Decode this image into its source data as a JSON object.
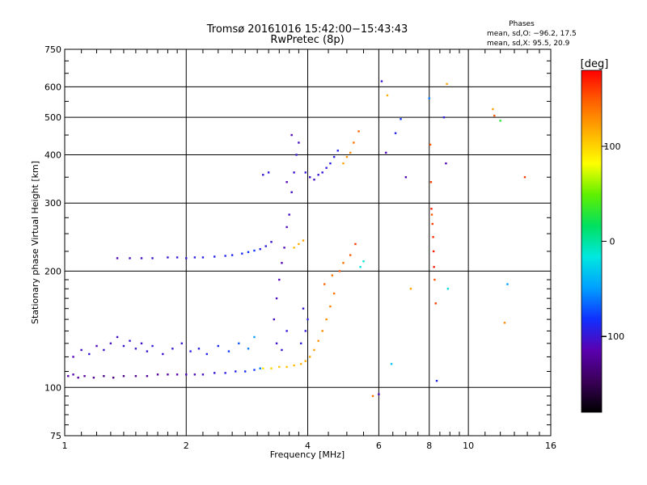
{
  "chart_data": {
    "type": "scatter",
    "title": "Tromsø 20161016 15:42:00−15:43:43",
    "subtitle": "RwPretec (8p)",
    "xlabel": "Frequency [MHz]",
    "ylabel": "Stationary phase Virtual Height [km]",
    "x_scale": "log",
    "y_scale": "log",
    "xlim": [
      1,
      16
    ],
    "ylim": [
      75,
      750
    ],
    "x_ticks": [
      "1",
      "2",
      "4",
      "6",
      "8",
      "10",
      "16"
    ],
    "y_ticks": [
      "75",
      "100",
      "200",
      "300",
      "400",
      "500",
      "600",
      "750"
    ],
    "grid": true,
    "stats": {
      "heading": "Phases",
      "line_o": "mean, sd,O: −96.2, 17.5",
      "line_x": "mean, sd,X:  95.5, 20.9"
    },
    "colorbar": {
      "label": "[deg]",
      "range": [
        -180,
        180
      ],
      "ticks": [
        "100",
        "0",
        "−100"
      ],
      "stops": [
        "#000000",
        "#3a0058",
        "#5a00b0",
        "#1030ff",
        "#00a0ff",
        "#00e8e0",
        "#00e060",
        "#60f000",
        "#ffff00",
        "#ffb000",
        "#ff6000",
        "#ff0000"
      ]
    },
    "series": [
      {
        "points": [
          [
            1.02,
            107,
            -115
          ],
          [
            1.05,
            108,
            -112
          ],
          [
            1.08,
            106,
            -118
          ],
          [
            1.12,
            107,
            -120
          ],
          [
            1.18,
            106,
            -125
          ],
          [
            1.25,
            107,
            -128
          ],
          [
            1.32,
            106,
            -130
          ],
          [
            1.4,
            107,
            -132
          ],
          [
            1.5,
            107,
            -128
          ],
          [
            1.6,
            107,
            -125
          ],
          [
            1.7,
            108,
            -122
          ],
          [
            1.8,
            108,
            -118
          ],
          [
            1.9,
            108,
            -115
          ],
          [
            2.0,
            108,
            -110
          ],
          [
            2.1,
            108,
            -108
          ],
          [
            2.2,
            108,
            -105
          ],
          [
            2.35,
            109,
            -100
          ],
          [
            2.5,
            109,
            -95
          ],
          [
            2.65,
            110,
            -90
          ],
          [
            2.8,
            110,
            -85
          ],
          [
            2.95,
            111,
            -78
          ],
          [
            3.05,
            112,
            -60
          ]
        ]
      },
      {
        "points": [
          [
            3.1,
            112,
            90
          ],
          [
            3.25,
            112,
            100
          ],
          [
            3.4,
            113,
            105
          ],
          [
            3.55,
            113,
            108
          ],
          [
            3.7,
            114,
            110
          ],
          [
            3.85,
            115,
            112
          ],
          [
            3.95,
            117,
            115
          ],
          [
            4.05,
            120,
            118
          ],
          [
            4.15,
            125,
            120
          ],
          [
            4.25,
            132,
            125
          ],
          [
            4.35,
            140,
            130
          ],
          [
            4.45,
            150,
            130
          ],
          [
            4.55,
            162,
            135
          ],
          [
            4.65,
            175,
            140
          ],
          [
            4.4,
            185,
            145
          ],
          [
            4.6,
            195,
            140
          ],
          [
            4.8,
            200,
            150
          ]
        ]
      },
      {
        "points": [
          [
            1.05,
            120,
            -110
          ],
          [
            1.1,
            125,
            -105
          ],
          [
            1.15,
            122,
            -100
          ],
          [
            1.2,
            128,
            -108
          ],
          [
            1.25,
            125,
            -102
          ],
          [
            1.3,
            130,
            -106
          ],
          [
            1.35,
            135,
            -104
          ],
          [
            1.4,
            128,
            -100
          ],
          [
            1.45,
            132,
            -98
          ],
          [
            1.5,
            126,
            -102
          ],
          [
            1.55,
            130,
            -104
          ],
          [
            1.6,
            124,
            -100
          ],
          [
            1.65,
            128,
            -96
          ],
          [
            1.75,
            122,
            -102
          ],
          [
            1.85,
            126,
            -98
          ],
          [
            1.95,
            130,
            -96
          ],
          [
            2.05,
            124,
            -94
          ],
          [
            2.15,
            126,
            -92
          ],
          [
            2.25,
            122,
            -90
          ],
          [
            2.4,
            128,
            -88
          ],
          [
            2.55,
            124,
            -80
          ],
          [
            2.7,
            130,
            -70
          ],
          [
            2.85,
            126,
            -60
          ],
          [
            2.95,
            135,
            -50
          ]
        ]
      },
      {
        "points": [
          [
            1.35,
            216,
            -110
          ],
          [
            1.45,
            216,
            -106
          ],
          [
            1.55,
            216,
            -104
          ],
          [
            1.65,
            216,
            -100
          ],
          [
            1.8,
            217,
            -100
          ],
          [
            1.9,
            217,
            -98
          ],
          [
            2.0,
            216,
            -96
          ],
          [
            2.1,
            217,
            -95
          ],
          [
            2.2,
            217,
            -94
          ],
          [
            2.35,
            218,
            -92
          ],
          [
            2.5,
            219,
            -90
          ],
          [
            2.6,
            220,
            -88
          ],
          [
            2.75,
            222,
            -85
          ],
          [
            2.85,
            224,
            -82
          ],
          [
            2.95,
            226,
            -80
          ],
          [
            3.05,
            228,
            -90
          ],
          [
            3.15,
            232,
            -95
          ],
          [
            3.25,
            238,
            -100
          ]
        ]
      },
      {
        "points": [
          [
            3.3,
            150,
            -105
          ],
          [
            3.35,
            170,
            -108
          ],
          [
            3.4,
            190,
            -110
          ],
          [
            3.45,
            210,
            -112
          ],
          [
            3.5,
            230,
            -110
          ],
          [
            3.55,
            260,
            -108
          ],
          [
            3.6,
            280,
            -106
          ],
          [
            3.65,
            320,
            -104
          ],
          [
            3.7,
            360,
            -102
          ],
          [
            3.75,
            400,
            -100
          ],
          [
            3.8,
            430,
            -104
          ],
          [
            3.65,
            450,
            -110
          ],
          [
            3.55,
            340,
            -112
          ],
          [
            3.45,
            125,
            -100
          ],
          [
            3.55,
            140,
            -98
          ],
          [
            3.35,
            130,
            -102
          ],
          [
            3.9,
            160,
            -100
          ],
          [
            3.95,
            140,
            -98
          ],
          [
            3.85,
            130,
            -96
          ],
          [
            4.0,
            150,
            -94
          ]
        ]
      },
      {
        "points": [
          [
            3.95,
            360,
            -100
          ],
          [
            4.05,
            350,
            -102
          ],
          [
            4.15,
            345,
            -104
          ],
          [
            4.25,
            355,
            -100
          ],
          [
            4.35,
            360,
            -98
          ],
          [
            4.45,
            370,
            -96
          ],
          [
            4.55,
            380,
            -94
          ],
          [
            4.65,
            395,
            -92
          ],
          [
            4.75,
            410,
            -90
          ],
          [
            4.9,
            380,
            120
          ],
          [
            5.0,
            395,
            125
          ],
          [
            5.1,
            405,
            130
          ],
          [
            5.2,
            430,
            140
          ],
          [
            5.35,
            460,
            145
          ]
        ]
      },
      {
        "points": [
          [
            3.1,
            355,
            -100
          ],
          [
            3.2,
            360,
            -96
          ],
          [
            3.7,
            230,
            110
          ],
          [
            3.8,
            235,
            115
          ],
          [
            3.9,
            240,
            118
          ],
          [
            4.9,
            210,
            140
          ],
          [
            5.1,
            220,
            150
          ],
          [
            5.25,
            235,
            160
          ],
          [
            5.4,
            205,
            -20
          ],
          [
            5.5,
            212,
            -10
          ]
        ]
      },
      {
        "points": [
          [
            5.8,
            95,
            140
          ],
          [
            6.0,
            96,
            -110
          ],
          [
            6.1,
            620,
            -100
          ],
          [
            6.25,
            405,
            -110
          ],
          [
            6.3,
            570,
            115
          ],
          [
            6.45,
            115,
            -30
          ],
          [
            6.6,
            455,
            -90
          ],
          [
            6.8,
            495,
            -80
          ],
          [
            7.0,
            350,
            -110
          ],
          [
            7.2,
            180,
            120
          ],
          [
            8.0,
            560,
            -60
          ],
          [
            8.05,
            425,
            150
          ],
          [
            8.08,
            340,
            160
          ],
          [
            8.1,
            290,
            170
          ],
          [
            8.12,
            280,
            150
          ],
          [
            8.15,
            265,
            160
          ],
          [
            8.18,
            245,
            165
          ],
          [
            8.2,
            225,
            170
          ],
          [
            8.22,
            205,
            170
          ],
          [
            8.25,
            190,
            150
          ],
          [
            8.3,
            165,
            160
          ],
          [
            8.35,
            104,
            -90
          ],
          [
            8.7,
            500,
            -95
          ],
          [
            8.8,
            380,
            -110
          ],
          [
            8.85,
            610,
            120
          ],
          [
            8.9,
            180,
            -20
          ],
          [
            11.5,
            525,
            120
          ],
          [
            11.6,
            505,
            150
          ],
          [
            12.0,
            490,
            30
          ],
          [
            12.5,
            185,
            -50
          ],
          [
            13.8,
            350,
            160
          ],
          [
            12.3,
            147,
            130
          ]
        ]
      }
    ]
  }
}
